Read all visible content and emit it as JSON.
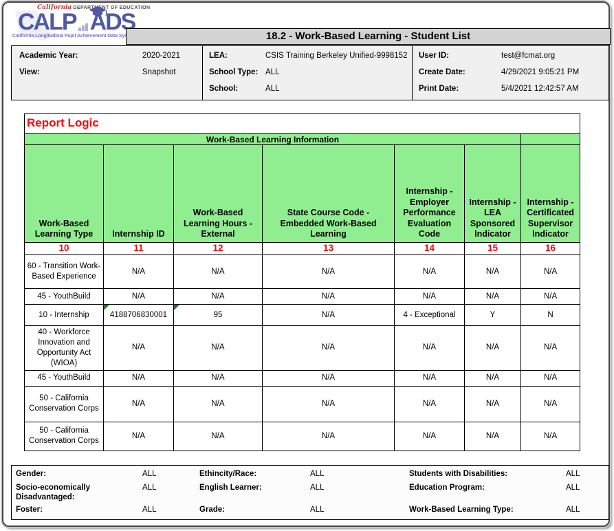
{
  "window": {
    "title": "18.2 - Work-Based Learning - Student List"
  },
  "logo": {
    "dept_prefix": "California",
    "dept_name": "DEPARTMENT OF EDUCATION",
    "brand_left": "CALP",
    "brand_mid": "A",
    "brand_right": "DS",
    "tagline": "California Longitudinal Pupil Achievement Data System",
    "brand_color": "#5059a4"
  },
  "report_header": {
    "academic_year": {
      "label": "Academic Year:",
      "value": "2020-2021"
    },
    "view": {
      "label": "View:",
      "value": "Snapshot"
    },
    "lea": {
      "label": "LEA:",
      "value": "CSIS Training Berkeley Unified-9998152"
    },
    "school_type": {
      "label": "School Type:",
      "value": "ALL"
    },
    "school": {
      "label": "School:",
      "value": "ALL"
    },
    "user_id": {
      "label": "User ID:",
      "value": "test@fcmat.org"
    },
    "create_date": {
      "label": "Create Date:",
      "value": "4/29/2021 9:05:21 PM"
    },
    "print_date": {
      "label": "Print Date:",
      "value": "5/4/2021 12:42:57 AM"
    }
  },
  "report_logic": {
    "title": "Report Logic",
    "group_header": "Work-Based Learning Information",
    "columns": [
      {
        "name": "Work-Based Learning Type",
        "num": "10"
      },
      {
        "name": "Internship ID",
        "num": "11"
      },
      {
        "name": "Work-Based Learning Hours - External",
        "num": "12"
      },
      {
        "name": "State Course Code - Embedded Work-Based Learning",
        "num": "13"
      },
      {
        "name": "Internship - Employer Performance Evaluation Code",
        "num": "14"
      },
      {
        "name": "Internship - LEA Sponsored Indicator",
        "num": "15"
      },
      {
        "name": "Internship - Certificated Supervisor Indicator",
        "num": "16"
      }
    ],
    "rows": [
      {
        "cells": [
          "60  - Transition Work-Based Experience",
          "N/A",
          "N/A",
          "N/A",
          "N/A",
          "N/A",
          "N/A"
        ],
        "note_cells": []
      },
      {
        "cells": [
          "45  - YouthBuild",
          "N/A",
          "N/A",
          "N/A",
          "N/A",
          "N/A",
          "N/A"
        ],
        "note_cells": []
      },
      {
        "cells": [
          "10  - Internship",
          "4188706830001",
          "95",
          "N/A",
          "4 - Exceptional",
          "Y",
          "N"
        ],
        "note_cells": [
          1,
          2
        ]
      },
      {
        "cells": [
          "40  - Workforce Innovation and Opportunity Act (WIOA)",
          "N/A",
          "N/A",
          "N/A",
          "N/A",
          "N/A",
          "N/A"
        ],
        "note_cells": []
      },
      {
        "cells": [
          "45  - YouthBuild",
          "N/A",
          "N/A",
          "N/A",
          "N/A",
          "N/A",
          "N/A"
        ],
        "note_cells": []
      },
      {
        "cells": [
          "50  - California Conservation Corps",
          "N/A",
          "N/A",
          "N/A",
          "N/A",
          "N/A",
          "N/A"
        ],
        "note_cells": []
      },
      {
        "cells": [
          "50  - California Conservation Corps",
          "N/A",
          "N/A",
          "N/A",
          "N/A",
          "N/A",
          "N/A"
        ],
        "note_cells": []
      }
    ]
  },
  "filters": {
    "rows": [
      [
        {
          "label": "Gender:",
          "value": "ALL"
        },
        {
          "label": "Ethincity/Race:",
          "value": "ALL"
        },
        {
          "label": "Students with Disabilities:",
          "value": "ALL"
        }
      ],
      [
        {
          "label": "Socio-economically Disadvantaged:",
          "value": "ALL"
        },
        {
          "label": "English Learner:",
          "value": "ALL"
        },
        {
          "label": "Education Program:",
          "value": "ALL"
        }
      ],
      [
        {
          "label": "Foster:",
          "value": "ALL"
        },
        {
          "label": "Grade:",
          "value": "ALL"
        },
        {
          "label": "Work-Based Learning Type:",
          "value": "ALL"
        }
      ]
    ]
  },
  "colors": {
    "header_green": "#90ee90",
    "accent_red": "#ff0000",
    "note_triangle_green": "#217a21",
    "title_bar_gray": "#d3d3d3",
    "header_box_gray": "#f1f0f0"
  }
}
